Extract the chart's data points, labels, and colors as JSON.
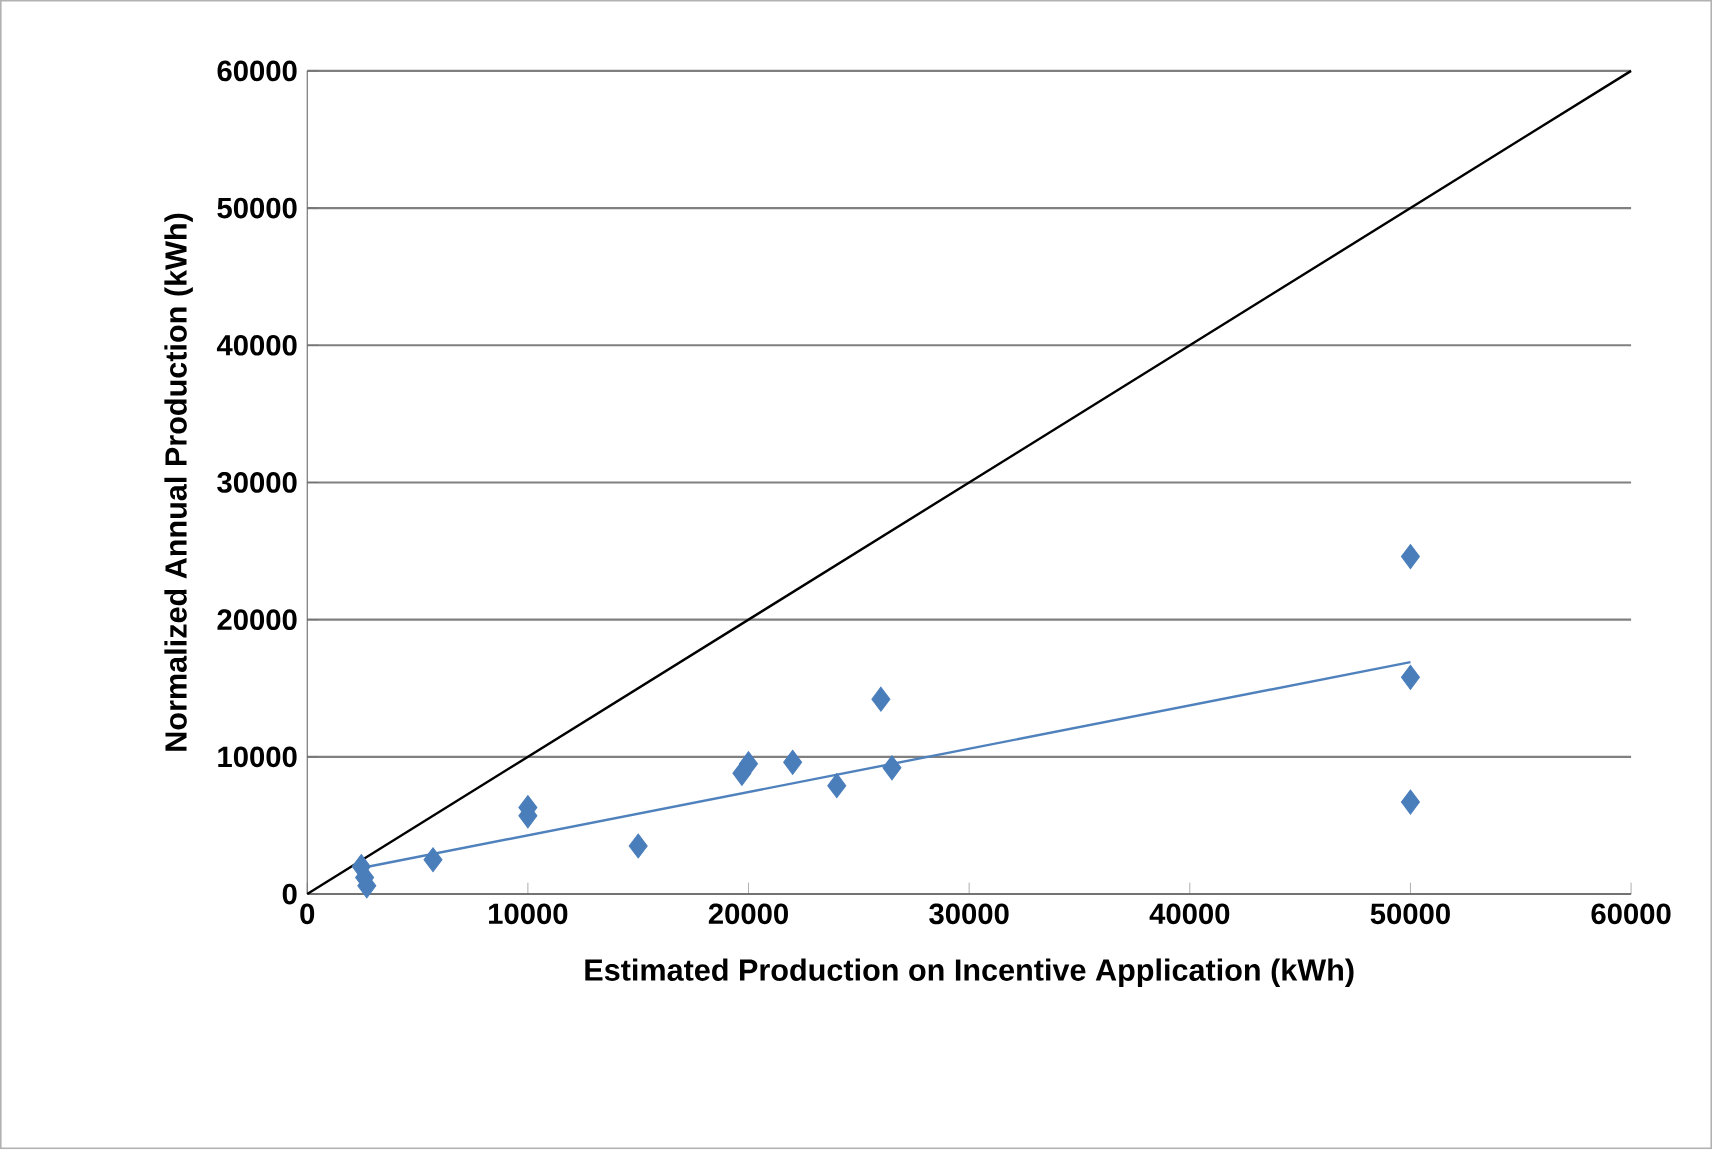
{
  "chart_data": {
    "type": "scatter",
    "xlabel": "Estimated  Production on Incentive Application (kWh)",
    "ylabel": "Normalized Annual Production (kWh)",
    "xlim": [
      0,
      60000
    ],
    "ylim": [
      0,
      60000
    ],
    "xticks": [
      0,
      10000,
      20000,
      30000,
      40000,
      50000,
      60000
    ],
    "yticks": [
      0,
      10000,
      20000,
      30000,
      40000,
      50000,
      60000
    ],
    "grid": "y",
    "marker": "diamond",
    "series": [
      {
        "color": "#4a7ebb",
        "x": [
          2450,
          2600,
          2700,
          5700,
          10000,
          10000,
          15000,
          19700,
          20000,
          22000,
          24000,
          26000,
          26500,
          50000,
          50000,
          50000
        ],
        "values": [
          2000,
          1200,
          600,
          2500,
          6300,
          5700,
          3500,
          8800,
          9500,
          9600,
          7900,
          14200,
          9200,
          24600,
          15800,
          6700
        ]
      },
      {
        "type": "line",
        "marker": "none",
        "color": "#4f81bd",
        "x": [
          2450,
          50000
        ],
        "values": [
          1900,
          16900
        ]
      },
      {
        "type": "line",
        "marker": "none",
        "color": "#000000",
        "x": [
          0,
          60000
        ],
        "values": [
          0,
          60000
        ]
      }
    ]
  }
}
